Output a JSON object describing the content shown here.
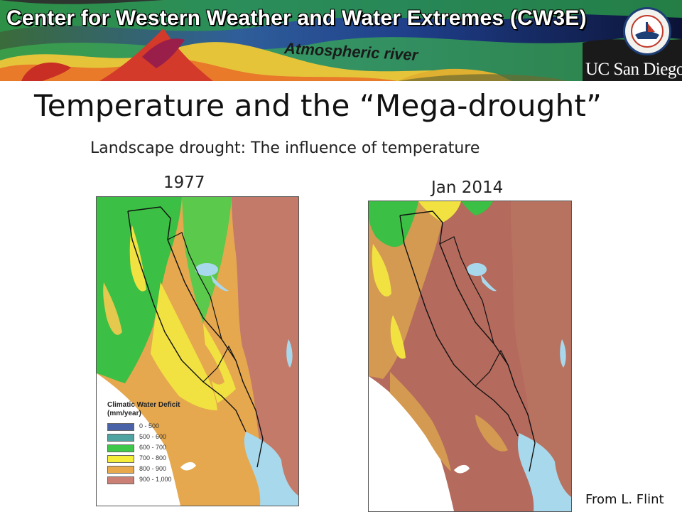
{
  "banner": {
    "title": "Center for Western Weather and Water Extremes (CW3E)",
    "atmospheric_river_label": "Atmospheric river",
    "university_logo": "UC San Diego",
    "seal_icon": "scripps-institution-seal-icon"
  },
  "slide": {
    "title": "Temperature and the “Mega-drought”",
    "subtitle": "Landscape drought: The influence of temperature",
    "credit": "From L. Flint"
  },
  "maps": [
    {
      "year_label": "1977",
      "legend": {
        "title": "Climatic Water Deficit (mm/year)",
        "items": [
          {
            "label": "0 - 500",
            "color": "#4a62a8"
          },
          {
            "label": "500 - 600",
            "color": "#4fa3a0"
          },
          {
            "label": "600 - 700",
            "color": "#3ec84a"
          },
          {
            "label": "700 - 800",
            "color": "#f4ee3a"
          },
          {
            "label": "800 - 900",
            "color": "#e8a94d"
          },
          {
            "label": "900 - 1,000",
            "color": "#cc7f74"
          }
        ]
      }
    },
    {
      "year_label": "Jan 2014"
    }
  ],
  "colors": {
    "water": "#a8d8ec",
    "deficit_high": "#b46a5c",
    "deficit_mid": "#d49a52",
    "deficit_low": "#f1e242",
    "green": "#3bbf44"
  }
}
